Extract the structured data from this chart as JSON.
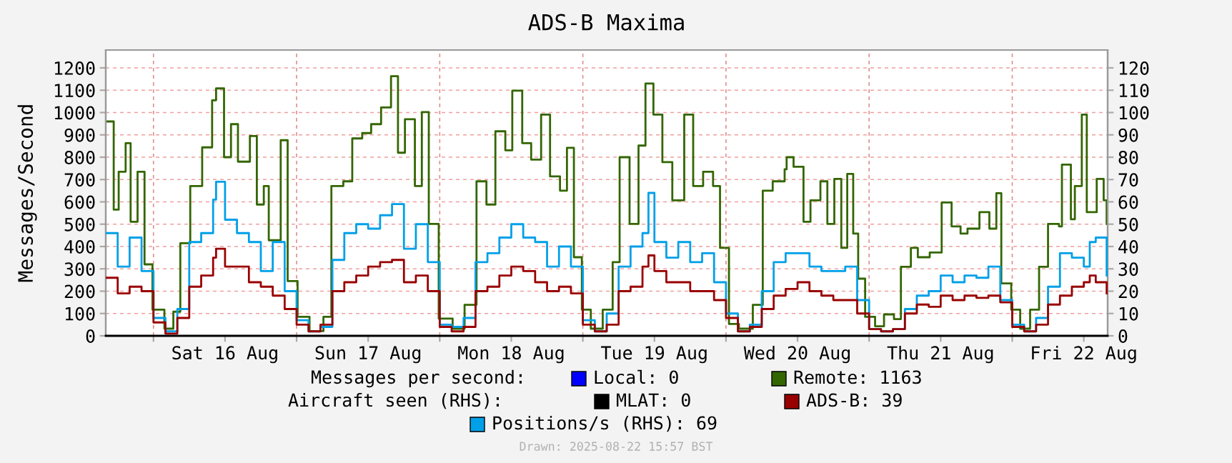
{
  "chart_data": {
    "type": "step",
    "title": "ADS-B Maxima",
    "ylabel": "Messages/Second",
    "xlim": [
      "2025-08-15T16:00",
      "2025-08-22T16:00"
    ],
    "xticks": [
      {
        "value": "2025-08-16T00:00",
        "label": null
      },
      {
        "value": "2025-08-16T12:00",
        "label": "Sat 16 Aug"
      },
      {
        "value": "2025-08-17T00:00",
        "label": null
      },
      {
        "value": "2025-08-17T12:00",
        "label": "Sun 17 Aug"
      },
      {
        "value": "2025-08-18T00:00",
        "label": null
      },
      {
        "value": "2025-08-18T12:00",
        "label": "Mon 18 Aug"
      },
      {
        "value": "2025-08-19T00:00",
        "label": null
      },
      {
        "value": "2025-08-19T12:00",
        "label": "Tue 19 Aug"
      },
      {
        "value": "2025-08-20T00:00",
        "label": null
      },
      {
        "value": "2025-08-20T12:00",
        "label": "Wed 20 Aug"
      },
      {
        "value": "2025-08-21T00:00",
        "label": null
      },
      {
        "value": "2025-08-21T12:00",
        "label": "Thu 21 Aug"
      },
      {
        "value": "2025-08-22T00:00",
        "label": null
      },
      {
        "value": "2025-08-22T12:00",
        "label": "Fri 22 Aug"
      }
    ],
    "ylim": [
      0,
      1280
    ],
    "yticks": [
      0,
      100,
      200,
      300,
      400,
      500,
      600,
      700,
      800,
      900,
      1000,
      1100,
      1200
    ],
    "y2lim": [
      0,
      128
    ],
    "y2ticks": [
      0,
      10,
      20,
      30,
      40,
      50,
      60,
      70,
      80,
      90,
      100,
      110,
      120
    ],
    "grid": true,
    "legend": "bottom",
    "annotations": [
      "Messages per second:",
      "Aircraft seen (RHS):",
      "Drawn: 2025-08-22 15:57 BST"
    ],
    "series": [
      {
        "name": "Local: 0",
        "color": "#0000ff"
      },
      {
        "name": "Remote: 1163",
        "color": "#336600",
        "x": [
          "2025-08-15T16:10",
          "2025-08-15T17:20",
          "2025-08-15T18:10",
          "2025-08-15T19:20",
          "2025-08-15T20:10",
          "2025-08-15T21:20",
          "2025-08-15T22:30",
          "2025-08-15T23:50",
          "2025-08-16T01:50",
          "2025-08-16T03:20",
          "2025-08-16T04:30",
          "2025-08-16T06:10",
          "2025-08-16T08:10",
          "2025-08-16T09:50",
          "2025-08-16T10:30",
          "2025-08-16T11:50",
          "2025-08-16T13:00",
          "2025-08-16T14:10",
          "2025-08-16T16:10",
          "2025-08-16T17:20",
          "2025-08-16T18:30",
          "2025-08-16T19:20",
          "2025-08-16T21:20",
          "2025-08-16T22:30",
          "2025-08-17T00:10",
          "2025-08-17T02:10",
          "2025-08-17T04:30",
          "2025-08-17T05:50",
          "2025-08-17T07:50",
          "2025-08-17T09:20",
          "2025-08-17T11:00",
          "2025-08-17T12:30",
          "2025-08-17T14:10",
          "2025-08-17T15:50",
          "2025-08-17T17:00",
          "2025-08-17T18:10",
          "2025-08-17T19:50",
          "2025-08-17T21:00",
          "2025-08-17T22:10",
          "2025-08-17T23:50",
          "2025-08-18T02:10",
          "2025-08-18T04:10",
          "2025-08-18T06:10",
          "2025-08-18T07:50",
          "2025-08-18T09:20",
          "2025-08-18T11:00",
          "2025-08-18T12:10",
          "2025-08-18T13:50",
          "2025-08-18T15:20",
          "2025-08-18T17:00",
          "2025-08-18T18:30",
          "2025-08-18T20:10",
          "2025-08-18T21:20",
          "2025-08-18T22:30",
          "2025-08-18T23:50",
          "2025-08-19T01:20",
          "2025-08-19T03:20",
          "2025-08-19T05:00",
          "2025-08-19T06:10",
          "2025-08-19T07:50",
          "2025-08-19T09:20",
          "2025-08-19T10:30",
          "2025-08-19T11:50",
          "2025-08-19T13:20",
          "2025-08-19T15:00",
          "2025-08-19T17:00",
          "2025-08-19T18:30",
          "2025-08-19T20:10",
          "2025-08-19T21:50",
          "2025-08-19T23:00",
          "2025-08-20T00:30",
          "2025-08-20T02:10",
          "2025-08-20T04:30",
          "2025-08-20T06:10",
          "2025-08-20T07:50",
          "2025-08-20T09:50",
          "2025-08-20T10:10",
          "2025-08-20T11:20",
          "2025-08-20T13:00",
          "2025-08-20T14:10",
          "2025-08-20T15:50",
          "2025-08-20T17:00",
          "2025-08-20T18:10",
          "2025-08-20T19:20",
          "2025-08-20T20:20",
          "2025-08-20T21:20",
          "2025-08-20T22:10",
          "2025-08-20T23:20",
          "2025-08-21T01:00",
          "2025-08-21T02:30",
          "2025-08-21T04:10",
          "2025-08-21T05:20",
          "2025-08-21T07:00",
          "2025-08-21T08:10",
          "2025-08-21T10:10",
          "2025-08-21T12:10",
          "2025-08-21T13:50",
          "2025-08-21T15:20",
          "2025-08-21T16:30",
          "2025-08-21T18:30",
          "2025-08-21T20:10",
          "2025-08-21T21:20",
          "2025-08-21T22:10",
          "2025-08-21T23:50",
          "2025-08-22T01:20",
          "2025-08-22T03:00",
          "2025-08-22T04:30",
          "2025-08-22T06:00",
          "2025-08-22T07:50",
          "2025-08-22T08:20",
          "2025-08-22T09:50",
          "2025-08-22T10:30",
          "2025-08-22T11:40",
          "2025-08-22T12:30",
          "2025-08-22T14:10",
          "2025-08-22T15:20",
          "2025-08-22T15:50"
        ],
        "values": [
          960,
          565,
          735,
          863,
          511,
          735,
          320,
          117,
          32,
          108,
          415,
          671,
          844,
          1055,
          1108,
          800,
          948,
          780,
          895,
          588,
          671,
          428,
          876,
          245,
          85,
          21,
          85,
          671,
          692,
          884,
          908,
          948,
          1023,
          1163,
          820,
          970,
          671,
          1002,
          501,
          77,
          32,
          139,
          692,
          588,
          916,
          831,
          1098,
          863,
          789,
          991,
          714,
          650,
          842,
          352,
          117,
          32,
          117,
          330,
          800,
          501,
          852,
          1130,
          991,
          778,
          607,
          991,
          671,
          735,
          671,
          394,
          53,
          32,
          139,
          650,
          692,
          746,
          800,
          757,
          511,
          607,
          692,
          501,
          703,
          394,
          725,
          458,
          256,
          85,
          43,
          96,
          75,
          309,
          394,
          352,
          373,
          597,
          490,
          458,
          480,
          554,
          480,
          639,
          235,
          117,
          32,
          117,
          309,
          501,
          490,
          767,
          522,
          671,
          991,
          554,
          703,
          607,
          501
        ]
      },
      {
        "name": "MLAT: 0",
        "color": "#000000",
        "axis": "y2",
        "x": [
          "2025-08-15T16:00",
          "2025-08-22T16:00"
        ],
        "values": [
          0,
          0
        ]
      },
      {
        "name": "ADS-B: 39",
        "color": "#990000",
        "axis": "y2",
        "x": [
          "2025-08-15T16:00",
          "2025-08-15T18:00",
          "2025-08-15T20:00",
          "2025-08-15T22:00",
          "2025-08-16T00:00",
          "2025-08-16T02:00",
          "2025-08-16T04:00",
          "2025-08-16T06:00",
          "2025-08-16T08:00",
          "2025-08-16T10:00",
          "2025-08-16T10:30",
          "2025-08-16T12:00",
          "2025-08-16T14:00",
          "2025-08-16T16:00",
          "2025-08-16T18:00",
          "2025-08-16T20:00",
          "2025-08-16T22:00",
          "2025-08-17T00:00",
          "2025-08-17T02:00",
          "2025-08-17T04:00",
          "2025-08-17T06:00",
          "2025-08-17T08:00",
          "2025-08-17T10:00",
          "2025-08-17T12:00",
          "2025-08-17T14:00",
          "2025-08-17T16:00",
          "2025-08-17T18:00",
          "2025-08-17T20:00",
          "2025-08-17T22:00",
          "2025-08-18T00:00",
          "2025-08-18T02:00",
          "2025-08-18T04:00",
          "2025-08-18T06:00",
          "2025-08-18T08:00",
          "2025-08-18T10:00",
          "2025-08-18T12:00",
          "2025-08-18T14:00",
          "2025-08-18T16:00",
          "2025-08-18T18:00",
          "2025-08-18T20:00",
          "2025-08-18T22:00",
          "2025-08-19T00:00",
          "2025-08-19T02:00",
          "2025-08-19T04:00",
          "2025-08-19T06:00",
          "2025-08-19T08:00",
          "2025-08-19T10:00",
          "2025-08-19T11:00",
          "2025-08-19T12:00",
          "2025-08-19T14:00",
          "2025-08-19T16:00",
          "2025-08-19T18:00",
          "2025-08-19T20:00",
          "2025-08-19T22:00",
          "2025-08-20T00:00",
          "2025-08-20T02:00",
          "2025-08-20T04:00",
          "2025-08-20T06:00",
          "2025-08-20T08:00",
          "2025-08-20T10:00",
          "2025-08-20T12:00",
          "2025-08-20T14:00",
          "2025-08-20T16:00",
          "2025-08-20T18:00",
          "2025-08-20T20:00",
          "2025-08-20T22:00",
          "2025-08-21T00:00",
          "2025-08-21T02:00",
          "2025-08-21T04:00",
          "2025-08-21T06:00",
          "2025-08-21T08:00",
          "2025-08-21T10:00",
          "2025-08-21T12:00",
          "2025-08-21T14:00",
          "2025-08-21T16:00",
          "2025-08-21T18:00",
          "2025-08-21T20:00",
          "2025-08-21T22:00",
          "2025-08-22T00:00",
          "2025-08-22T02:00",
          "2025-08-22T04:00",
          "2025-08-22T06:00",
          "2025-08-22T08:00",
          "2025-08-22T10:00",
          "2025-08-22T12:00",
          "2025-08-22T13:00",
          "2025-08-22T14:00",
          "2025-08-22T15:50"
        ],
        "values": [
          26,
          19,
          22,
          20,
          6,
          1,
          8,
          22,
          27,
          35,
          39,
          31,
          31,
          24,
          22,
          18,
          12,
          5,
          2,
          5,
          20,
          24,
          27,
          31,
          33,
          34,
          24,
          27,
          20,
          4,
          2,
          4,
          20,
          22,
          27,
          31,
          29,
          24,
          20,
          22,
          19,
          5,
          2,
          5,
          20,
          22,
          31,
          36,
          29,
          24,
          24,
          20,
          20,
          16,
          8,
          2,
          4,
          12,
          18,
          21,
          24,
          20,
          18,
          16,
          16,
          10,
          3,
          2,
          3,
          10,
          14,
          13,
          18,
          16,
          18,
          17,
          18,
          15,
          4,
          2,
          5,
          14,
          18,
          22,
          24,
          27,
          24,
          19
        ]
      },
      {
        "name": "Positions/s (RHS): 69",
        "color": "#00a0e8",
        "axis": "y2",
        "x": [
          "2025-08-15T16:00",
          "2025-08-15T18:00",
          "2025-08-15T20:00",
          "2025-08-15T22:00",
          "2025-08-16T00:00",
          "2025-08-16T02:00",
          "2025-08-16T04:00",
          "2025-08-16T06:00",
          "2025-08-16T08:00",
          "2025-08-16T10:00",
          "2025-08-16T10:30",
          "2025-08-16T12:00",
          "2025-08-16T14:00",
          "2025-08-16T16:00",
          "2025-08-16T18:00",
          "2025-08-16T20:00",
          "2025-08-16T22:00",
          "2025-08-17T00:00",
          "2025-08-17T02:00",
          "2025-08-17T04:00",
          "2025-08-17T06:00",
          "2025-08-17T08:00",
          "2025-08-17T10:00",
          "2025-08-17T12:00",
          "2025-08-17T14:00",
          "2025-08-17T16:00",
          "2025-08-17T18:00",
          "2025-08-17T20:00",
          "2025-08-17T22:00",
          "2025-08-18T00:00",
          "2025-08-18T02:00",
          "2025-08-18T04:00",
          "2025-08-18T06:00",
          "2025-08-18T08:00",
          "2025-08-18T10:00",
          "2025-08-18T12:00",
          "2025-08-18T14:00",
          "2025-08-18T16:00",
          "2025-08-18T18:00",
          "2025-08-18T20:00",
          "2025-08-18T22:00",
          "2025-08-19T00:00",
          "2025-08-19T02:00",
          "2025-08-19T04:00",
          "2025-08-19T06:00",
          "2025-08-19T08:00",
          "2025-08-19T10:00",
          "2025-08-19T11:00",
          "2025-08-19T12:00",
          "2025-08-19T14:00",
          "2025-08-19T16:00",
          "2025-08-19T18:00",
          "2025-08-19T20:00",
          "2025-08-19T22:00",
          "2025-08-20T00:00",
          "2025-08-20T02:00",
          "2025-08-20T04:00",
          "2025-08-20T06:00",
          "2025-08-20T08:00",
          "2025-08-20T10:00",
          "2025-08-20T12:00",
          "2025-08-20T14:00",
          "2025-08-20T16:00",
          "2025-08-20T18:00",
          "2025-08-20T20:00",
          "2025-08-20T22:00",
          "2025-08-21T00:00",
          "2025-08-21T02:00",
          "2025-08-21T04:00",
          "2025-08-21T06:00",
          "2025-08-21T08:00",
          "2025-08-21T10:00",
          "2025-08-21T12:00",
          "2025-08-21T14:00",
          "2025-08-21T16:00",
          "2025-08-21T18:00",
          "2025-08-21T20:00",
          "2025-08-21T22:00",
          "2025-08-22T00:00",
          "2025-08-22T02:00",
          "2025-08-22T04:00",
          "2025-08-22T06:00",
          "2025-08-22T08:00",
          "2025-08-22T10:00",
          "2025-08-22T12:00",
          "2025-08-22T13:00",
          "2025-08-22T14:00",
          "2025-08-22T15:50"
        ],
        "values": [
          46,
          31,
          44,
          29,
          8,
          2,
          12,
          42,
          46,
          61,
          69,
          52,
          46,
          42,
          29,
          42,
          20,
          7,
          2,
          4,
          34,
          46,
          50,
          48,
          54,
          59,
          39,
          50,
          33,
          5,
          4,
          8,
          33,
          37,
          44,
          50,
          44,
          42,
          31,
          40,
          31,
          7,
          2,
          10,
          31,
          40,
          46,
          64,
          42,
          35,
          42,
          33,
          37,
          24,
          10,
          2,
          5,
          20,
          33,
          37,
          37,
          31,
          29,
          29,
          31,
          16,
          3,
          2,
          3,
          12,
          18,
          20,
          27,
          24,
          27,
          26,
          31,
          16,
          5,
          2,
          8,
          22,
          37,
          35,
          31,
          42,
          44,
          27
        ]
      }
    ]
  }
}
